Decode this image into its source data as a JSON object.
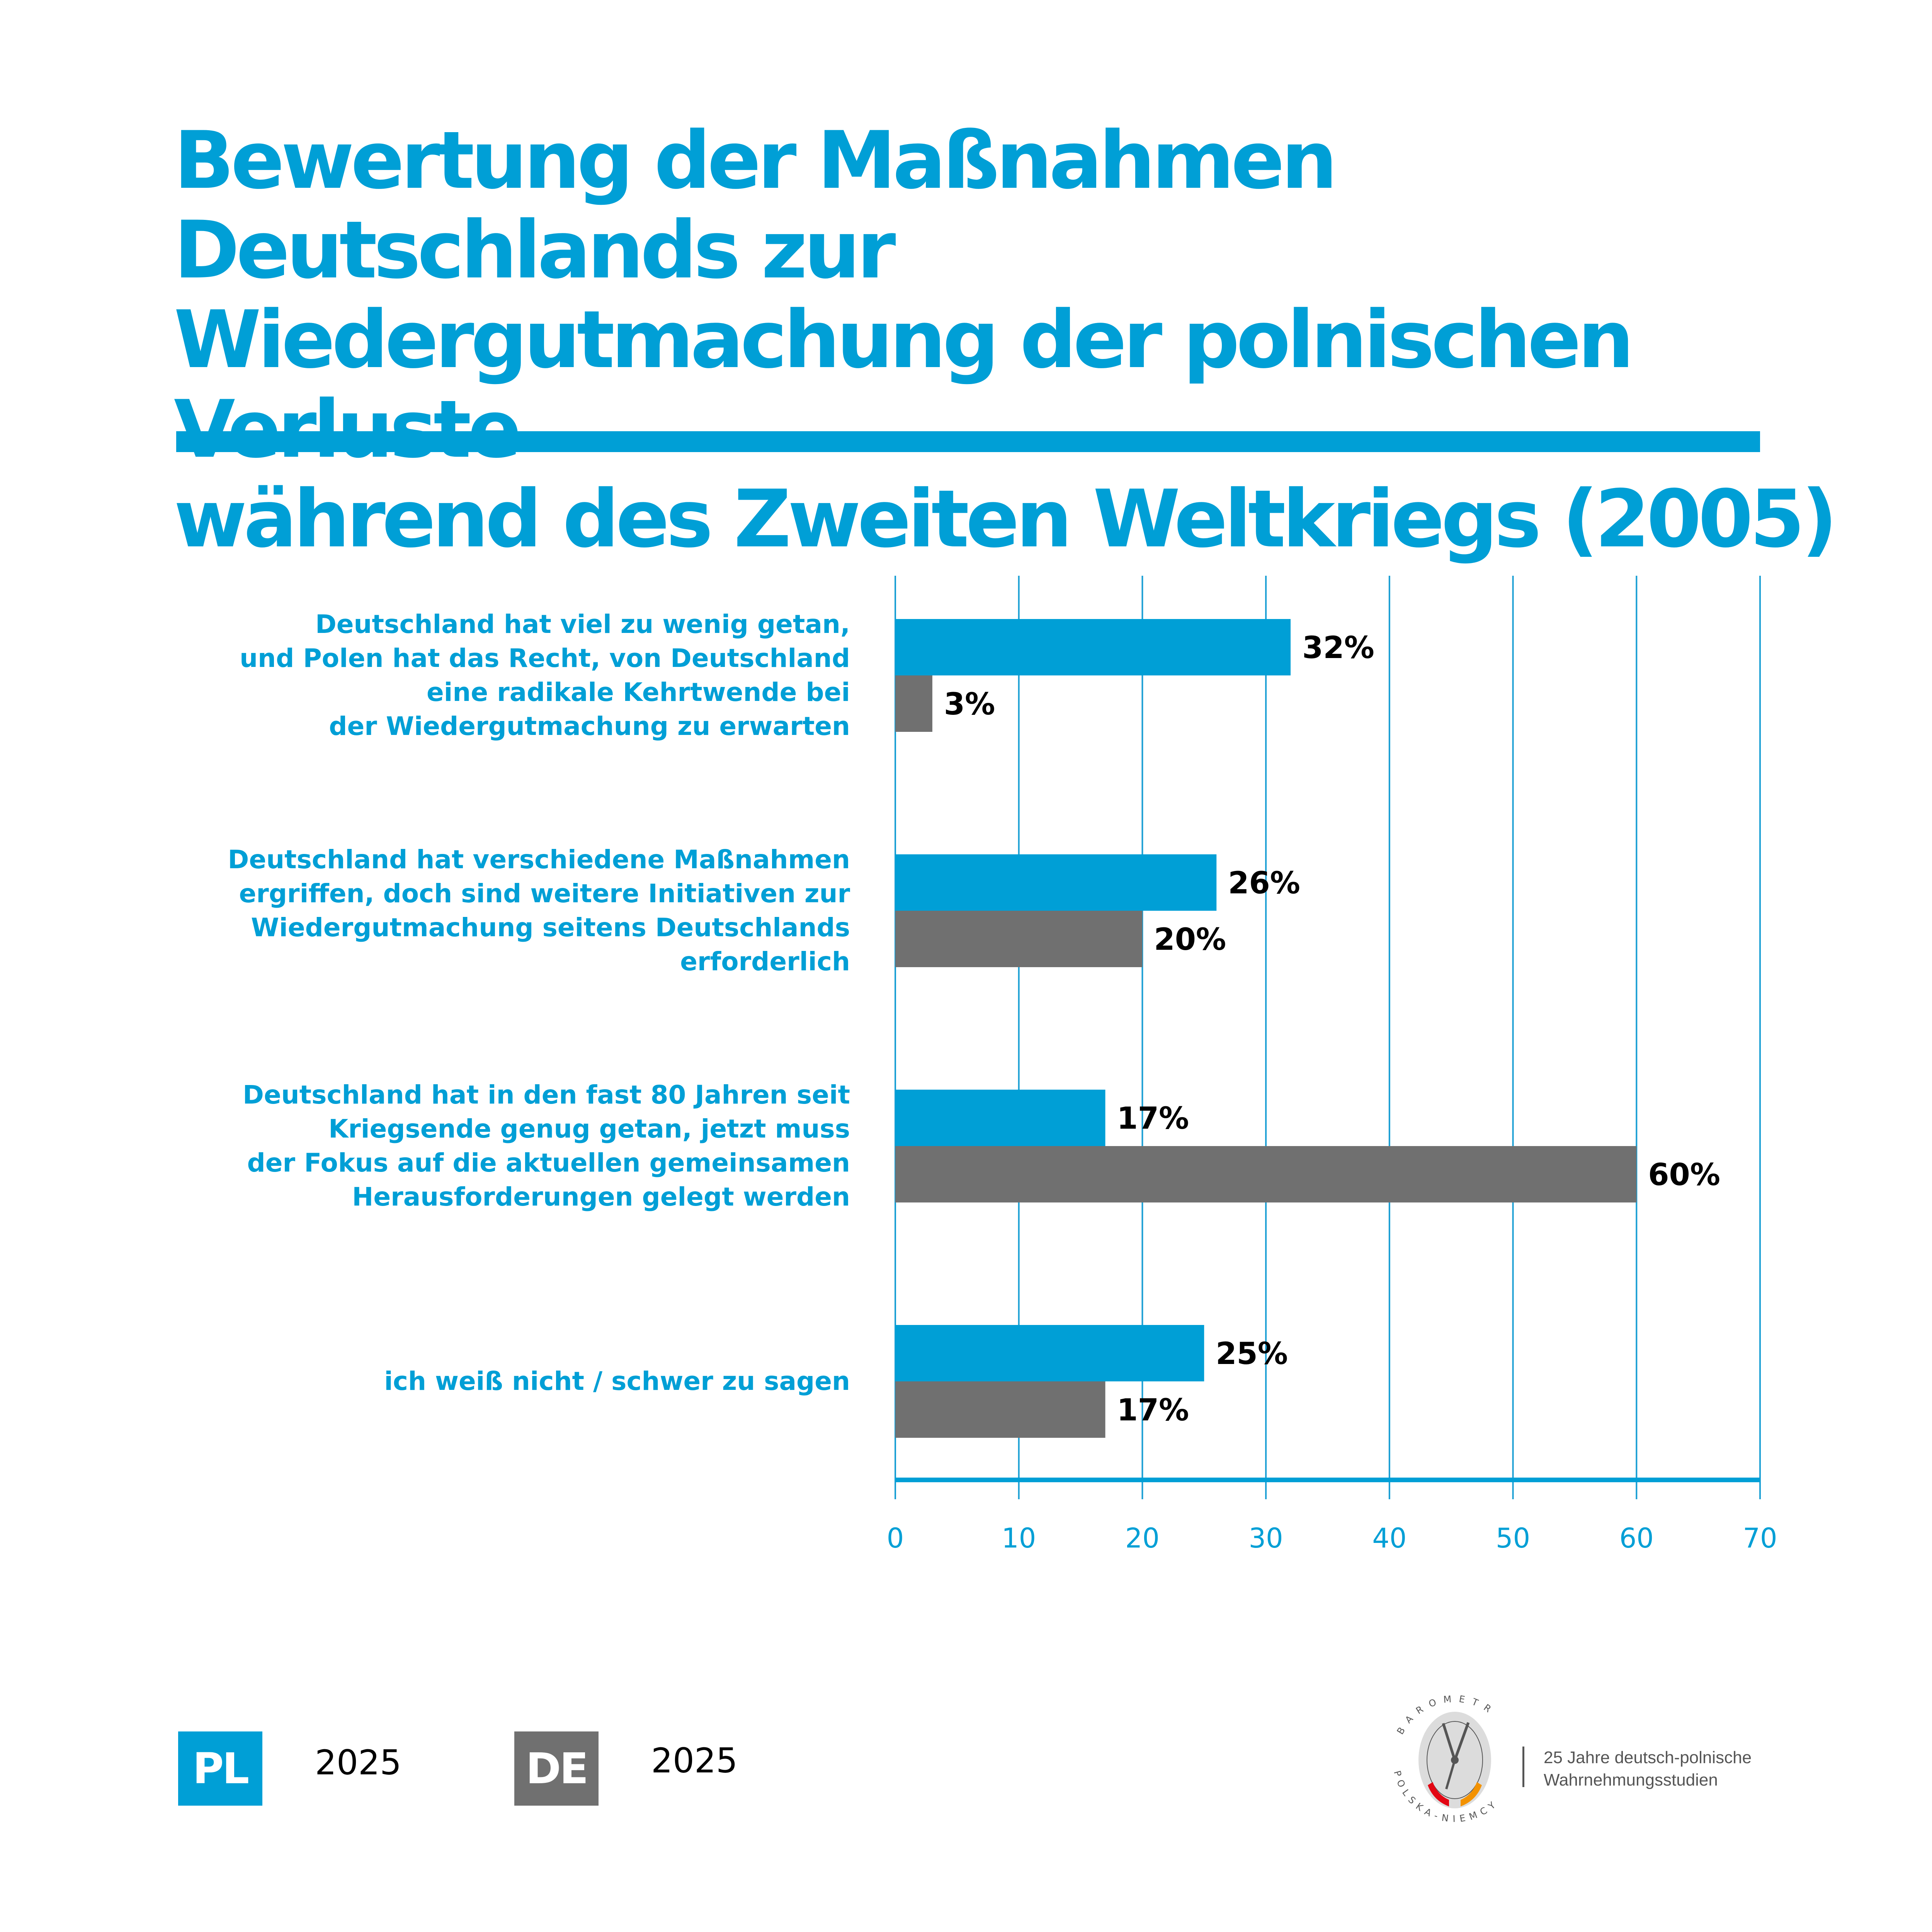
{
  "title": {
    "lines": [
      "Bewertung der Maßnahmen Deutschlands zur",
      "Wiedergutmachung der polnischen Verluste",
      "während des Zweiten Weltkriegs (2005)"
    ]
  },
  "colors": {
    "accent": "#009fd6",
    "pl": "#009fd6",
    "de": "#707070",
    "grid": "#1a9fd4",
    "value_text": "#000000"
  },
  "legend": [
    {
      "code": "PL",
      "year": "2025",
      "color": "#009fd6"
    },
    {
      "code": "DE",
      "year": "2025",
      "color": "#707070"
    }
  ],
  "logo": {
    "ring_text_top": "BAROMETR",
    "ring_text_bottom": "POLSKA-NIEMCY",
    "caption_line1": "25 Jahre deutsch-polnische",
    "caption_line2": "Wahrnehmungsstudien"
  },
  "chart_data": {
    "type": "bar",
    "orientation": "horizontal",
    "title": "Bewertung der Maßnahmen Deutschlands zur Wiedergutmachung der polnischen Verluste während des Zweiten Weltkriegs (2005)",
    "xlabel": "",
    "ylabel": "",
    "xlim": [
      0,
      70
    ],
    "xticks": [
      0,
      10,
      20,
      30,
      40,
      50,
      60,
      70
    ],
    "grid": true,
    "legend_position": "bottom-left",
    "categories": [
      [
        "Deutschland hat viel zu wenig getan,",
        "und Polen hat das Recht, von Deutschland",
        "eine radikale Kehrtwende bei",
        "der Wiedergutmachung zu erwarten"
      ],
      [
        "Deutschland hat verschiedene Maßnahmen",
        "ergriffen, doch sind weitere Initiativen zur",
        "Wiedergutmachung seitens Deutschlands",
        "erforderlich"
      ],
      [
        "Deutschland hat in den fast 80 Jahren seit",
        "Kriegsende genug getan, jetzt muss",
        "der Fokus auf die aktuellen gemeinsamen",
        "Herausforderungen gelegt werden"
      ],
      [
        "ich weiß nicht / schwer zu sagen"
      ]
    ],
    "series": [
      {
        "name": "PL 2025",
        "color": "#009fd6",
        "values": [
          32,
          26,
          17,
          25
        ],
        "labels": [
          "32%",
          "26%",
          "17%",
          "25%"
        ]
      },
      {
        "name": "DE 2025",
        "color": "#707070",
        "values": [
          3,
          20,
          60,
          17
        ],
        "labels": [
          "3%",
          "20%",
          "60%",
          "17%"
        ]
      }
    ]
  }
}
